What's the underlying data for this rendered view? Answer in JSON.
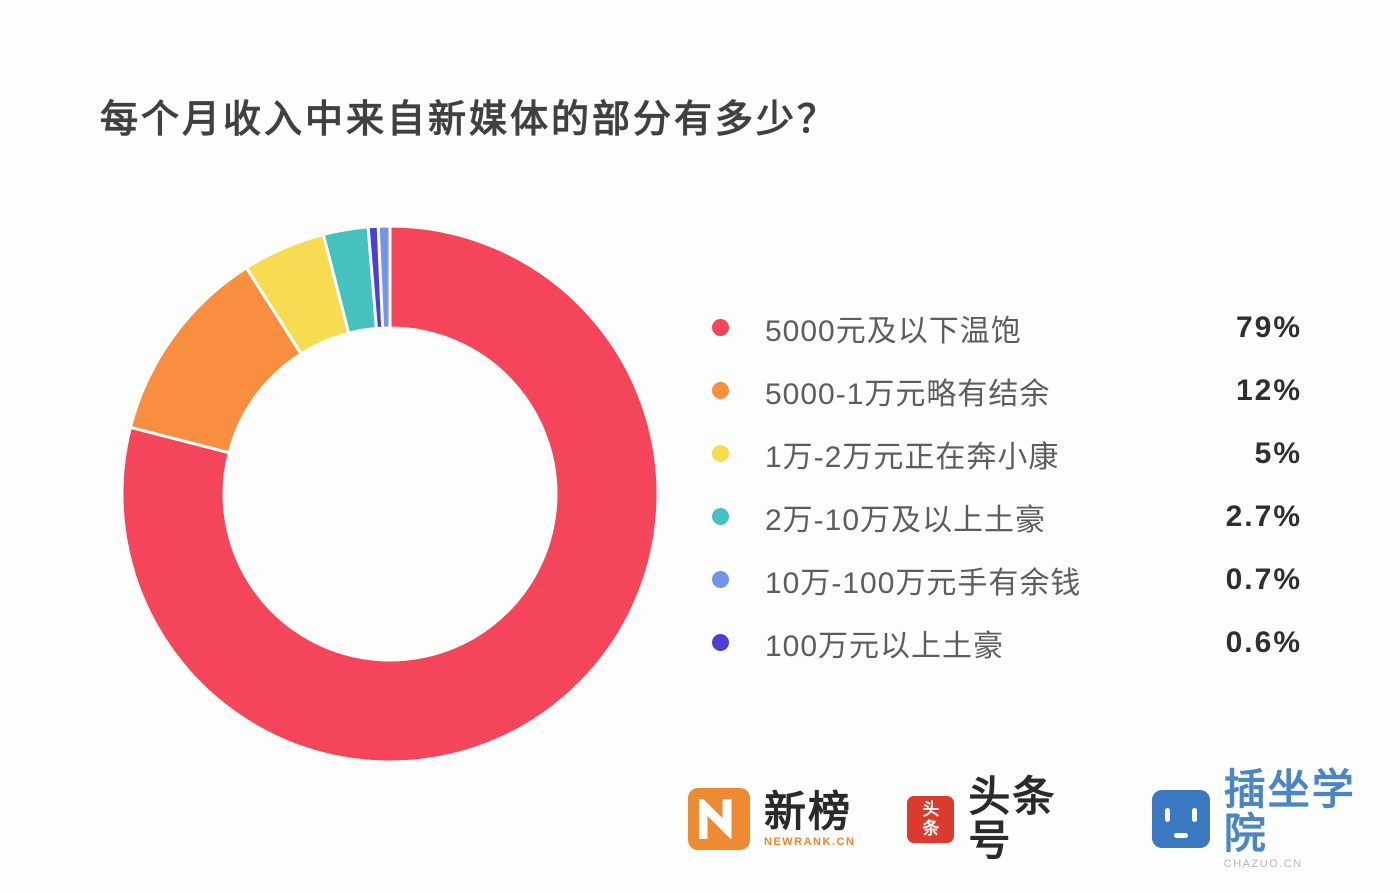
{
  "title": "每个月收入中来自新媒体的部分有多少？",
  "chart_data": {
    "type": "pie",
    "style": "donut",
    "title": "每个月收入中来自新媒体的部分有多少？",
    "legend_position": "right",
    "start_angle_deg": 0,
    "direction": "clockwise",
    "items": [
      {
        "label": "5000元及以下温饱",
        "value": 79,
        "display": "79%",
        "color": "#f4455a"
      },
      {
        "label": "5000-1万元略有结余",
        "value": 12,
        "display": "12%",
        "color": "#f78f3f"
      },
      {
        "label": "1万-2万元正在奔小康",
        "value": 5,
        "display": "5%",
        "color": "#f7dc52"
      },
      {
        "label": "2万-10万及以上土豪",
        "value": 2.7,
        "display": "2.7%",
        "color": "#45c2c0"
      },
      {
        "label": "10万-100万元手有余钱",
        "value": 0.7,
        "display": "0.7%",
        "color": "#7395e8"
      },
      {
        "label": "100万元以上土豪",
        "value": 0.6,
        "display": "0.6%",
        "color": "#4b3fd6"
      }
    ],
    "draw_order": [
      0,
      1,
      2,
      3,
      5,
      4
    ]
  },
  "footer": {
    "logos": [
      {
        "name": "newrank",
        "text": "新榜",
        "subtext": "NEWRANK.CN",
        "badge_color": "#ee8a31"
      },
      {
        "name": "toutiao",
        "text": "头条号",
        "badge_char_top": "头",
        "badge_char_bottom": "条",
        "badge_color": "#dd3a2e"
      },
      {
        "name": "chazuo",
        "text": "插坐学院",
        "subtext": "CHAZUO.CN",
        "badge_color": "#3a79c0"
      }
    ]
  }
}
